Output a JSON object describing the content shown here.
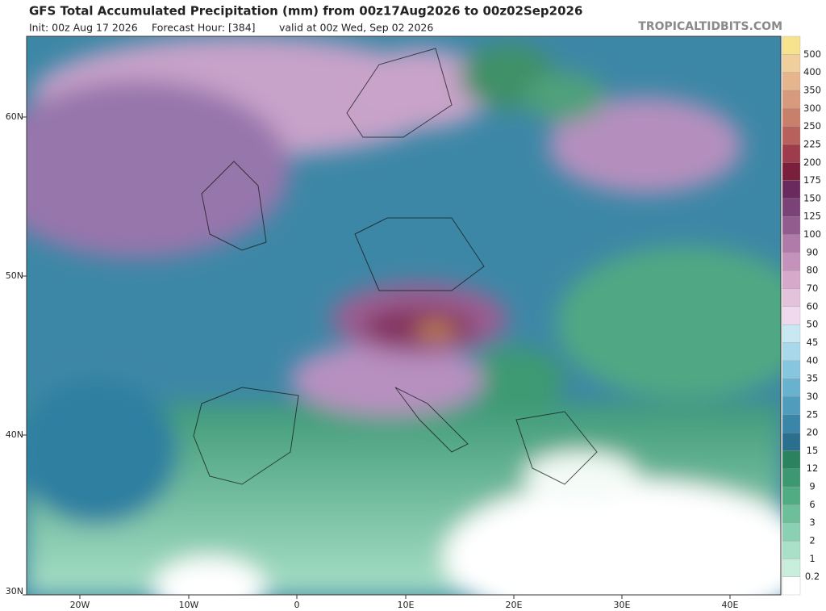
{
  "header": {
    "title": "GFS Total Accumulated Precipitation (mm) from 00z17Aug2026 to 00z02Sep2026",
    "init": "Init: 00z Aug 17 2026",
    "forecast_hour": "Forecast Hour: [384]",
    "valid": "valid at 00z Wed, Sep 02 2026",
    "credit": "TROPICALTIDBITS.COM"
  },
  "map": {
    "lat_labels": [
      "60N",
      "50N",
      "40N",
      "30N"
    ],
    "lon_labels": [
      "20W",
      "10W",
      "0",
      "10E",
      "20E",
      "30E",
      "40E"
    ]
  },
  "colorbar": {
    "levels": [
      0.2,
      1,
      2,
      3,
      6,
      9,
      12,
      15,
      20,
      25,
      30,
      35,
      40,
      45,
      50,
      60,
      70,
      80,
      90,
      100,
      125,
      150,
      175,
      200,
      225,
      250,
      300,
      350,
      400,
      500
    ]
  }
}
